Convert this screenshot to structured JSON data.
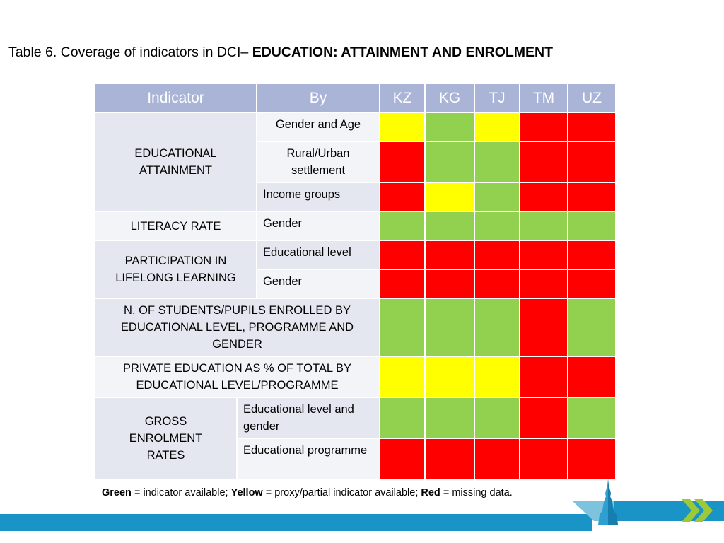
{
  "title": {
    "prefix": "Table 6. Coverage of indicators in DCI– ",
    "bold": "EDUCATION: ATTAINMENT AND ENROLMENT"
  },
  "table": {
    "headers": [
      "Indicator",
      "By",
      "KZ",
      "KG",
      "TJ",
      "TM",
      "UZ"
    ],
    "groups": [
      {
        "indicator": "EDUCATIONAL ATTAINMENT",
        "rows": [
          {
            "by": "Gender and Age",
            "status": [
              "yellow",
              "green",
              "yellow",
              "red",
              "red"
            ]
          },
          {
            "by": "Rural/Urban settlement",
            "status": [
              "red",
              "green",
              "green",
              "red",
              "red"
            ]
          },
          {
            "by": "Income groups",
            "status": [
              "red",
              "yellow",
              "green",
              "red",
              "red"
            ]
          }
        ]
      },
      {
        "indicator": "LITERACY RATE",
        "rows": [
          {
            "by": "Gender",
            "status": [
              "green",
              "green",
              "green",
              "green",
              "green"
            ]
          }
        ]
      },
      {
        "indicator": "PARTICIPATION IN LIFELONG LEARNING",
        "rows": [
          {
            "by": "Educational level",
            "status": [
              "red",
              "red",
              "red",
              "red",
              "red"
            ]
          },
          {
            "by": "Gender",
            "status": [
              "red",
              "red",
              "red",
              "red",
              "red"
            ]
          }
        ]
      },
      {
        "indicator": "N. OF STUDENTS/PUPILS ENROLLED BY EDUCATIONAL LEVEL, PROGRAMME AND GENDER",
        "rows": [
          {
            "by": "",
            "status": [
              "green",
              "green",
              "green",
              "red",
              "green"
            ]
          }
        ]
      },
      {
        "indicator": "PRIVATE EDUCATION AS % OF TOTAL BY EDUCATIONAL LEVEL/PROGRAMME",
        "rows": [
          {
            "by": "",
            "status": [
              "yellow",
              "yellow",
              "yellow",
              "red",
              "red"
            ]
          }
        ]
      },
      {
        "indicator": "GROSS ENROLMENT RATES",
        "rows": [
          {
            "by": "Educational level and gender",
            "status": [
              "green",
              "green",
              "green",
              "red",
              "green"
            ]
          },
          {
            "by": "Educational programme",
            "status": [
              "red",
              "red",
              "red",
              "red",
              "red"
            ]
          }
        ]
      }
    ]
  },
  "colors": {
    "green": "#92d050",
    "yellow": "#ffff00",
    "red": "#ff0000",
    "header": "#a9b4d6"
  },
  "legend": {
    "green_word": "Green",
    "green_text": " = indicator available; ",
    "yellow_word": "Yellow",
    "yellow_text": " = proxy/partial indicator available; ",
    "red_word": "Red",
    "red_text": " = missing data."
  }
}
